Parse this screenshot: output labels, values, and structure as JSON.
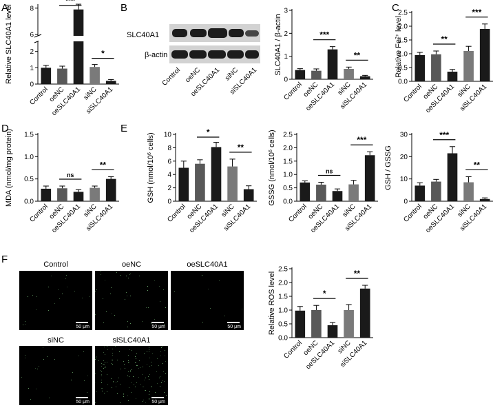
{
  "groups": [
    "Control",
    "oeNC",
    "oeSLC40A1",
    "siNC",
    "siSLC40A1"
  ],
  "colors": [
    "#1a1a1a",
    "#595959",
    "#1a1a1a",
    "#7a7a7a",
    "#1a1a1a"
  ],
  "panel_letters": [
    "A",
    "B",
    "C",
    "D",
    "E",
    "F"
  ],
  "blot": {
    "protein_label": "SLC40A1",
    "loading_label": "β-actin"
  },
  "micrographs": {
    "scale_label": "50 μm",
    "titles": [
      "Control",
      "oeNC",
      "oeSLC40A1",
      "siNC",
      "siSLC40A1"
    ]
  },
  "chart_data": [
    {
      "id": "A",
      "type": "bar",
      "ylabel": "Relative SLC40A1 level",
      "y_axis_break": true,
      "ticks": [
        0,
        1,
        2,
        6,
        8
      ],
      "categories": [
        "Control",
        "oeNC",
        "oeSLC40A1",
        "siNC",
        "siSLC40A1"
      ],
      "values": [
        1.0,
        0.95,
        7.9,
        1.05,
        0.2
      ],
      "errors": [
        0.15,
        0.15,
        0.4,
        0.15,
        0.08
      ],
      "significance": [
        {
          "from": 1,
          "to": 2,
          "label": "***"
        },
        {
          "from": 3,
          "to": 4,
          "label": "*"
        }
      ]
    },
    {
      "id": "B",
      "type": "bar",
      "ylabel": "SLC40A1 / β-actin",
      "ylim": [
        0,
        3
      ],
      "ticks": [
        0,
        1,
        2,
        3
      ],
      "categories": [
        "Control",
        "oeNC",
        "oeSLC40A1",
        "siNC",
        "siSLC40A1"
      ],
      "values": [
        0.4,
        0.37,
        1.3,
        0.45,
        0.13
      ],
      "errors": [
        0.06,
        0.08,
        0.12,
        0.08,
        0.04
      ],
      "significance": [
        {
          "from": 1,
          "to": 2,
          "label": "***"
        },
        {
          "from": 3,
          "to": 4,
          "label": "**"
        }
      ]
    },
    {
      "id": "C",
      "type": "bar",
      "ylabel": "Relative Fe2+ level",
      "ylim": [
        0,
        2.5
      ],
      "ticks": [
        0.0,
        0.5,
        1.0,
        1.5,
        2.0,
        2.5
      ],
      "categories": [
        "Control",
        "oeNC",
        "oeSLC40A1",
        "siNC",
        "siSLC40A1"
      ],
      "values": [
        0.95,
        0.98,
        0.35,
        1.1,
        1.9
      ],
      "errors": [
        0.1,
        0.12,
        0.08,
        0.17,
        0.18
      ],
      "significance": [
        {
          "from": 1,
          "to": 2,
          "label": "**"
        },
        {
          "from": 3,
          "to": 4,
          "label": "***"
        }
      ]
    },
    {
      "id": "D",
      "type": "bar",
      "ylabel": "MDA (nmol/mg protein)",
      "ylim": [
        0,
        1.5
      ],
      "ticks": [
        0.0,
        0.5,
        1.0,
        1.5
      ],
      "categories": [
        "Control",
        "oeNC",
        "oeSLC40A1",
        "siNC",
        "siSLC40A1"
      ],
      "values": [
        0.28,
        0.29,
        0.21,
        0.3,
        0.5
      ],
      "errors": [
        0.06,
        0.05,
        0.05,
        0.04,
        0.05
      ],
      "significance": [
        {
          "from": 1,
          "to": 2,
          "label": "ns"
        },
        {
          "from": 3,
          "to": 4,
          "label": "**"
        }
      ]
    },
    {
      "id": "E1",
      "type": "bar",
      "ylabel": "GSH (nmol/10⁶ cells)",
      "ylim": [
        0,
        10
      ],
      "ticks": [
        0,
        2,
        4,
        6,
        8,
        10
      ],
      "categories": [
        "Control",
        "oeNC",
        "oeSLC40A1",
        "siNC",
        "siSLC40A1"
      ],
      "values": [
        5.0,
        5.6,
        8.1,
        5.2,
        1.8
      ],
      "errors": [
        1.0,
        0.6,
        0.7,
        1.1,
        0.5
      ],
      "significance": [
        {
          "from": 1,
          "to": 2,
          "label": "*"
        },
        {
          "from": 3,
          "to": 4,
          "label": "**"
        }
      ]
    },
    {
      "id": "E2",
      "type": "bar",
      "ylabel": "GSSG (nmol/10⁶ cells)",
      "ylim": [
        0,
        2.5
      ],
      "ticks": [
        0.0,
        0.5,
        1.0,
        1.5,
        2.0,
        2.5
      ],
      "categories": [
        "Control",
        "oeNC",
        "oeSLC40A1",
        "siNC",
        "siSLC40A1"
      ],
      "values": [
        0.7,
        0.62,
        0.38,
        0.63,
        1.72
      ],
      "errors": [
        0.06,
        0.09,
        0.08,
        0.15,
        0.13
      ],
      "significance": [
        {
          "from": 1,
          "to": 2,
          "label": "ns"
        },
        {
          "from": 3,
          "to": 4,
          "label": "***"
        }
      ]
    },
    {
      "id": "E3",
      "type": "bar",
      "ylabel": "GSH / GSSG",
      "ylim": [
        0,
        30
      ],
      "ticks": [
        0,
        10,
        20,
        30
      ],
      "categories": [
        "Control",
        "oeNC",
        "oeSLC40A1",
        "siNC",
        "siSLC40A1"
      ],
      "values": [
        7.0,
        8.8,
        21.5,
        8.5,
        1.0
      ],
      "errors": [
        1.3,
        1.0,
        3.0,
        2.5,
        0.5
      ],
      "significance": [
        {
          "from": 1,
          "to": 2,
          "label": "***"
        },
        {
          "from": 3,
          "to": 4,
          "label": "**"
        }
      ]
    },
    {
      "id": "F",
      "type": "bar",
      "ylabel": "Relative ROS level",
      "ylim": [
        0,
        2.5
      ],
      "ticks": [
        0.0,
        0.5,
        1.0,
        1.5,
        2.0,
        2.5
      ],
      "categories": [
        "Control",
        "oeNC",
        "oeSLC40A1",
        "siNC",
        "siSLC40A1"
      ],
      "values": [
        0.98,
        1.0,
        0.45,
        1.0,
        1.78
      ],
      "errors": [
        0.15,
        0.17,
        0.1,
        0.2,
        0.12
      ],
      "significance": [
        {
          "from": 1,
          "to": 2,
          "label": "*"
        },
        {
          "from": 3,
          "to": 4,
          "label": "**"
        }
      ]
    }
  ]
}
